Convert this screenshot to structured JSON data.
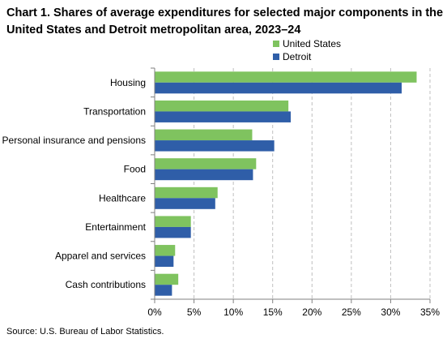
{
  "title": "Chart 1. Shares of average expenditures for selected major components in the United States and Detroit metropolitan area, 2023–24",
  "source": "Source: U.S. Bureau of Labor Statistics.",
  "colors": {
    "united_states": "#7fc35f",
    "detroit": "#2f5ea8",
    "grid": "#bfbfbf",
    "axis": "#808080"
  },
  "chart_data": {
    "type": "bar",
    "orientation": "horizontal",
    "categories": [
      "Housing",
      "Transportation",
      "Personal insurance and pensions",
      "Food",
      "Healthcare",
      "Entertainment",
      "Apparel and services",
      "Cash contributions"
    ],
    "series": [
      {
        "name": "United States",
        "values": [
          33.3,
          17.0,
          12.4,
          12.9,
          8.0,
          4.6,
          2.6,
          3.0
        ]
      },
      {
        "name": "Detroit",
        "values": [
          31.4,
          17.3,
          15.2,
          12.5,
          7.7,
          4.6,
          2.4,
          2.2
        ]
      }
    ],
    "xlim": [
      0,
      35
    ],
    "xticks": [
      "0%",
      "5%",
      "10%",
      "15%",
      "20%",
      "25%",
      "30%",
      "35%"
    ],
    "grid": "vertical dashed",
    "legend": "top-right"
  }
}
